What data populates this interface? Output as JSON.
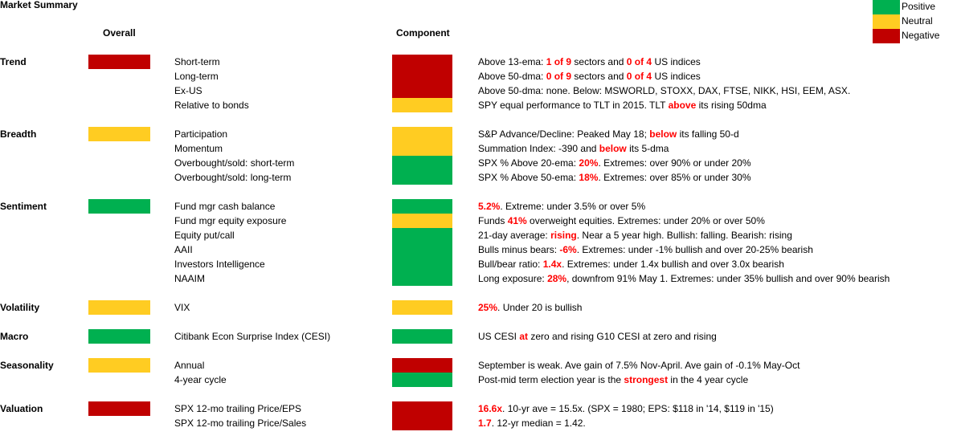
{
  "title": "Market Summary",
  "headers": {
    "overall": "Overall",
    "component": "Component"
  },
  "colors": {
    "positive": "#00b050",
    "neutral": "#ffcc22",
    "negative": "#c00000",
    "highlight": "#ff0000"
  },
  "legend": [
    {
      "label": "Positive",
      "status": "positive"
    },
    {
      "label": "Neutral",
      "status": "neutral"
    },
    {
      "label": "Negative",
      "status": "negative"
    }
  ],
  "sections": [
    {
      "name": "Trend",
      "overall": "negative",
      "rows": [
        {
          "label": "Short-term",
          "status": "negative",
          "parts": [
            [
              "Above 13-ema: ",
              false
            ],
            [
              "1 of 9",
              true
            ],
            [
              " sectors and ",
              false
            ],
            [
              "0 of 4",
              true
            ],
            [
              " US indices",
              false
            ]
          ]
        },
        {
          "label": "Long-term",
          "status": "negative",
          "parts": [
            [
              "Above 50-dma: ",
              false
            ],
            [
              "0 of 9",
              true
            ],
            [
              " sectors and ",
              false
            ],
            [
              "0 of 4",
              true
            ],
            [
              " US indices",
              false
            ]
          ]
        },
        {
          "label": "Ex-US",
          "status": "negative",
          "parts": [
            [
              "Above 50-dma: none. Below: MSWORLD, STOXX, DAX, FTSE, NIKK, HSI, EEM, ASX.",
              false
            ]
          ]
        },
        {
          "label": "Relative to bonds",
          "status": "neutral",
          "parts": [
            [
              "SPY equal performance to TLT in 2015. TLT ",
              false
            ],
            [
              "above",
              true
            ],
            [
              " its rising 50dma",
              false
            ]
          ]
        }
      ]
    },
    {
      "name": "Breadth",
      "overall": "neutral",
      "rows": [
        {
          "label": "Participation",
          "status": "neutral",
          "parts": [
            [
              "S&P Advance/Decline: Peaked May 18; ",
              false
            ],
            [
              "below",
              true
            ],
            [
              " its falling 50-d",
              false
            ]
          ]
        },
        {
          "label": "Momentum",
          "status": "neutral",
          "parts": [
            [
              "Summation Index: -390 and ",
              false
            ],
            [
              "below",
              true
            ],
            [
              " its 5-dma",
              false
            ]
          ]
        },
        {
          "label": "Overbought/sold: short-term",
          "status": "positive",
          "parts": [
            [
              "SPX % Above 20-ema: ",
              false
            ],
            [
              "20%",
              true
            ],
            [
              ". Extremes: over 90% or under 20%",
              false
            ]
          ]
        },
        {
          "label": "Overbought/sold: long-term",
          "status": "positive",
          "parts": [
            [
              "SPX % Above 50-ema: ",
              false
            ],
            [
              "18%",
              true
            ],
            [
              ". Extremes: over 85% or under 30%",
              false
            ]
          ]
        }
      ]
    },
    {
      "name": "Sentiment",
      "overall": "positive",
      "rows": [
        {
          "label": "Fund mgr cash balance",
          "status": "positive",
          "parts": [
            [
              "5.2%",
              true
            ],
            [
              ". Extreme: under 3.5% or over 5%",
              false
            ]
          ]
        },
        {
          "label": "Fund mgr equity exposure",
          "status": "neutral",
          "parts": [
            [
              "Funds ",
              false
            ],
            [
              "41%",
              true
            ],
            [
              " overweight equities. Extremes: under 20% or over 50%",
              false
            ]
          ]
        },
        {
          "label": "Equity put/call",
          "status": "positive",
          "parts": [
            [
              "21-day average: ",
              false
            ],
            [
              "rising",
              true
            ],
            [
              ". Near a 5 year high. Bullish: falling. Bearish: rising",
              false
            ]
          ]
        },
        {
          "label": "AAII",
          "status": "positive",
          "parts": [
            [
              "Bulls minus bears: ",
              false
            ],
            [
              "-6%",
              true
            ],
            [
              ". Extremes: under -1% bullish and over 20-25% bearish",
              false
            ]
          ]
        },
        {
          "label": "Investors Intelligence",
          "status": "positive",
          "parts": [
            [
              "Bull/bear ratio: ",
              false
            ],
            [
              "1.4x",
              true
            ],
            [
              ". Extremes: under 1.4x bullish and over 3.0x bearish",
              false
            ]
          ]
        },
        {
          "label": "NAAIM",
          "status": "positive",
          "parts": [
            [
              "Long exposure: ",
              false
            ],
            [
              "28%",
              true
            ],
            [
              ", downfrom 91% May 1. Extremes: under 35% bullish and over 90% bearish",
              false
            ]
          ]
        }
      ]
    },
    {
      "name": "Volatility",
      "overall": "neutral",
      "rows": [
        {
          "label": "VIX",
          "status": "neutral",
          "parts": [
            [
              "25%",
              true
            ],
            [
              ". Under 20 is bullish",
              false
            ]
          ]
        }
      ]
    },
    {
      "name": "Macro",
      "overall": "positive",
      "rows": [
        {
          "label": "Citibank Econ Surprise Index (CESI)",
          "status": "positive",
          "parts": [
            [
              "US CESI ",
              false
            ],
            [
              "at",
              true
            ],
            [
              " zero and rising  G10 CESI at zero and rising",
              false
            ]
          ]
        }
      ]
    },
    {
      "name": "Seasonality",
      "overall": "neutral",
      "rows": [
        {
          "label": "Annual",
          "status": "negative",
          "parts": [
            [
              "September is weak. Ave gain of 7.5% Nov-April. Ave gain of -0.1% May-Oct",
              false
            ]
          ]
        },
        {
          "label": "4-year cycle",
          "status": "positive",
          "parts": [
            [
              "Post-mid term election year is the ",
              false
            ],
            [
              "strongest",
              true
            ],
            [
              " in the 4 year cycle",
              false
            ]
          ]
        }
      ]
    },
    {
      "name": "Valuation",
      "overall": "negative",
      "rows": [
        {
          "label": "SPX 12-mo trailing Price/EPS",
          "status": "negative",
          "parts": [
            [
              "16.6x",
              true
            ],
            [
              ". 10-yr ave = 15.5x.  (SPX = 1980; EPS: $118 in '14, $119 in '15)",
              false
            ]
          ]
        },
        {
          "label": "SPX 12-mo trailing Price/Sales",
          "status": "negative",
          "parts": [
            [
              "1.7",
              true
            ],
            [
              ". 12-yr median = 1.42.",
              false
            ]
          ]
        }
      ]
    }
  ]
}
